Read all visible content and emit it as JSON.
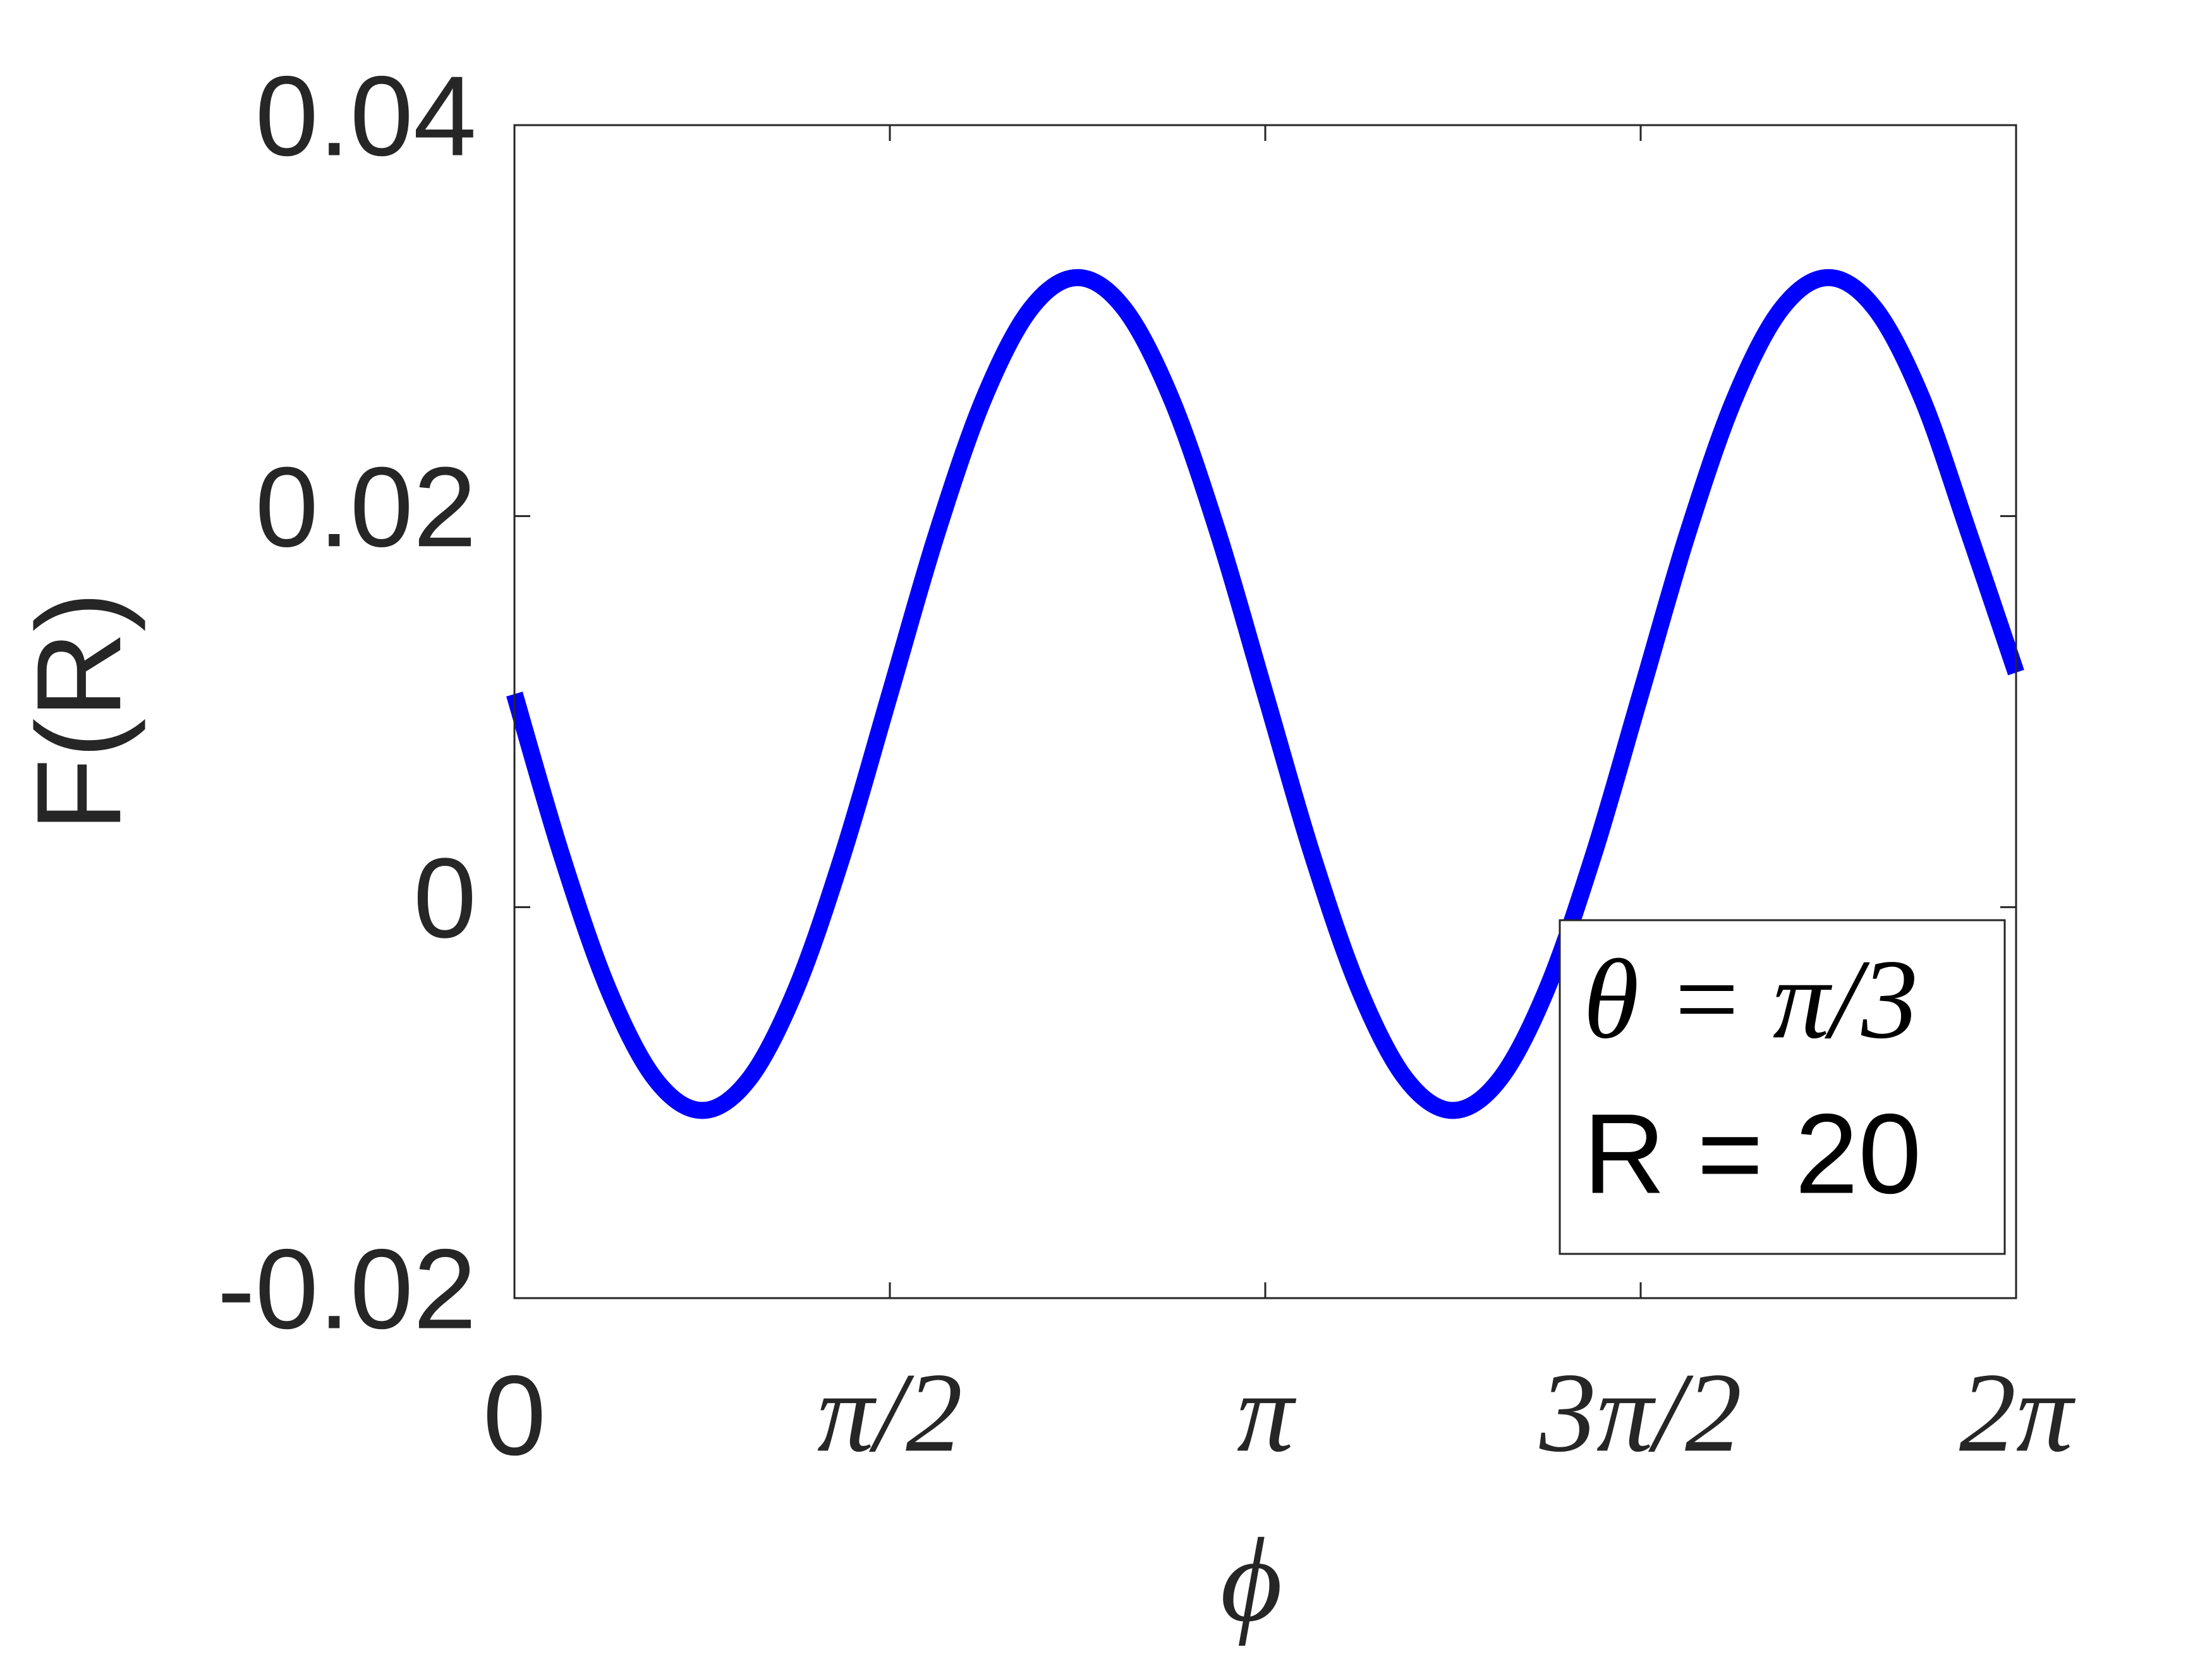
{
  "chart_data": {
    "type": "line",
    "xlabel": "ϕ",
    "ylabel": "F(R)",
    "x": [
      0,
      0.1963,
      0.3927,
      0.589,
      0.7854,
      0.9817,
      1.1781,
      1.3744,
      1.5708,
      1.7671,
      1.9635,
      2.1598,
      2.3562,
      2.5525,
      2.7489,
      2.9452,
      3.1416,
      3.3379,
      3.5343,
      3.7306,
      3.927,
      4.1233,
      4.3197,
      4.516,
      4.7124,
      4.9087,
      5.1051,
      5.3014,
      5.4978,
      5.6941,
      5.8905,
      6.0868,
      6.2832
    ],
    "series": [
      {
        "color": "#0000ff",
        "values": [
          0.0109,
          0.0027,
          -0.0042,
          -0.0088,
          -0.0104,
          -0.0088,
          -0.0042,
          0.0027,
          0.0109,
          0.0191,
          0.026,
          0.0306,
          0.0322,
          0.0306,
          0.026,
          0.0191,
          0.0109,
          0.0027,
          -0.0042,
          -0.0088,
          -0.0104,
          -0.0088,
          -0.0042,
          0.0027,
          0.0109,
          0.0191,
          0.026,
          0.0306,
          0.0322,
          0.0306,
          0.026,
          0.0191,
          0.012
        ]
      }
    ],
    "xlim": [
      0,
      6.2832
    ],
    "ylim": [
      -0.02,
      0.04
    ],
    "xticks": [
      0,
      {
        "value": 1.5708,
        "label": "π/2"
      },
      {
        "value": 3.1416,
        "label": "π"
      },
      {
        "value": 4.7124,
        "label": "3π/2"
      },
      {
        "value": 6.2832,
        "label": "2π"
      }
    ],
    "yticks": [
      -0.02,
      0,
      0.02,
      0.04
    ],
    "annotations": [
      "θ = π/3",
      "R = 20"
    ]
  }
}
